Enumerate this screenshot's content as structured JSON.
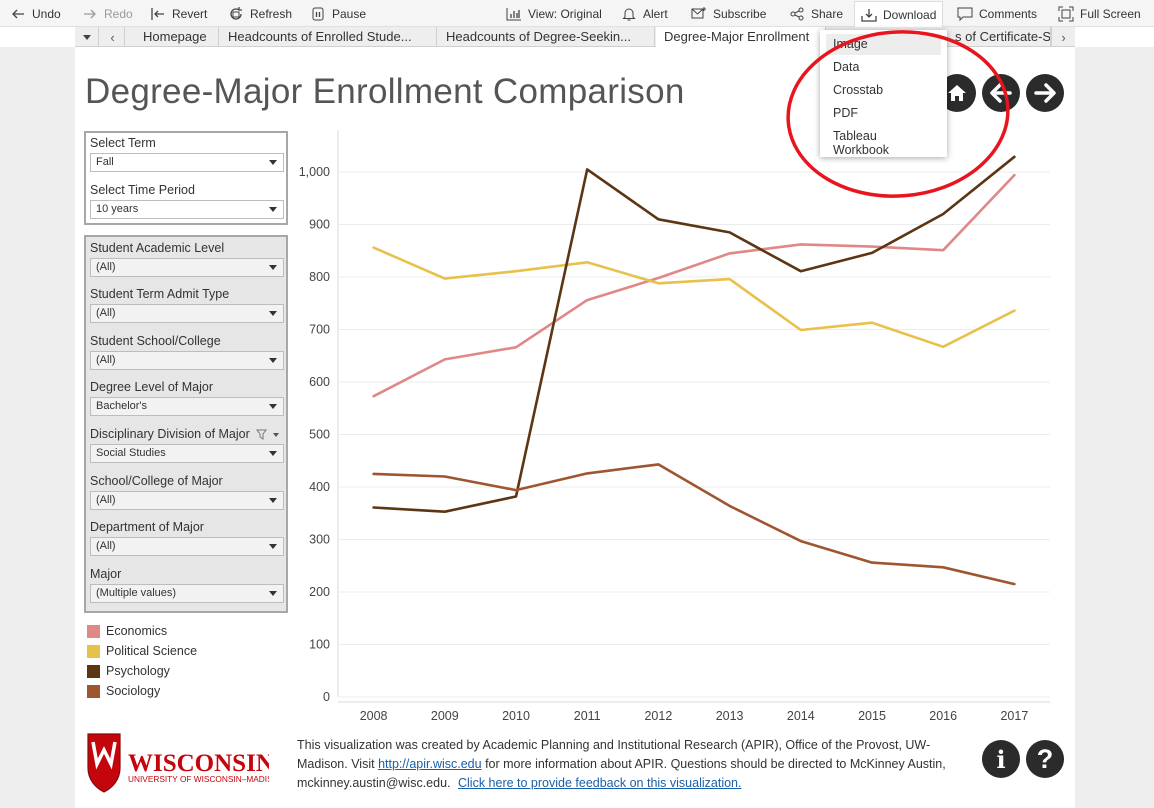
{
  "toolbar": {
    "undo": "Undo",
    "redo": "Redo",
    "revert": "Revert",
    "refresh": "Refresh",
    "pause": "Pause",
    "view": "View: Original",
    "alert": "Alert",
    "subscribe": "Subscribe",
    "share": "Share",
    "download": "Download",
    "comments": "Comments",
    "fullscreen": "Full Screen"
  },
  "tabs": [
    {
      "label": "Homepage"
    },
    {
      "label": "Headcounts of Enrolled Stude..."
    },
    {
      "label": "Headcounts of Degree-Seekin..."
    },
    {
      "label": "Degree-Major Enrollment"
    },
    {
      "label": "s of Certificate-S"
    }
  ],
  "download_menu": {
    "items": [
      "Image",
      "Data",
      "Crosstab",
      "PDF",
      "Tableau Workbook"
    ]
  },
  "page": {
    "title": "Degree-Major Enrollment Comparison"
  },
  "filters_top": [
    {
      "label": "Select Term",
      "value": "Fall"
    },
    {
      "label": "Select Time Period",
      "value": "10 years"
    }
  ],
  "filters": [
    {
      "label": "Student Academic Level",
      "value": "(All)"
    },
    {
      "label": "Student Term Admit Type",
      "value": "(All)"
    },
    {
      "label": "Student School/College",
      "value": "(All)"
    },
    {
      "label": "Degree Level of Major",
      "value": "Bachelor's"
    },
    {
      "label": "Disciplinary Division of Major",
      "value": "Social Studies"
    },
    {
      "label": "School/College of Major",
      "value": "(All)"
    },
    {
      "label": "Department of Major",
      "value": "(All)"
    },
    {
      "label": "Major",
      "value": "(Multiple values)"
    }
  ],
  "colors": {
    "economics": "#df8886",
    "political_science": "#e7c14a",
    "psychology": "#5c3512",
    "sociology": "#9e5530",
    "annotation": "#e8141e"
  },
  "chart_data": {
    "type": "line",
    "title": "Degree-Major Enrollment Comparison",
    "xlabel": "",
    "ylabel": "",
    "x": [
      "2008",
      "2009",
      "2010",
      "2011",
      "2012",
      "2013",
      "2014",
      "2015",
      "2016",
      "2017"
    ],
    "yticks": [
      "0",
      "100",
      "200",
      "300",
      "400",
      "500",
      "600",
      "700",
      "800",
      "900",
      "1,000"
    ],
    "ylim": [
      0,
      1080
    ],
    "legend_position": "left",
    "series": [
      {
        "name": "Economics",
        "color": "#df8886",
        "values": [
          573,
          643,
          666,
          756,
          798,
          845,
          862,
          858,
          851,
          994
        ]
      },
      {
        "name": "Political Science",
        "color": "#e7c14a",
        "values": [
          856,
          797,
          811,
          828,
          788,
          796,
          699,
          713,
          667,
          736
        ]
      },
      {
        "name": "Psychology",
        "color": "#5c3512",
        "values": [
          361,
          353,
          382,
          1005,
          910,
          885,
          811,
          846,
          920,
          1029
        ]
      },
      {
        "name": "Sociology",
        "color": "#9e5530",
        "values": [
          425,
          420,
          394,
          426,
          443,
          364,
          297,
          256,
          247,
          215
        ]
      }
    ]
  },
  "footer": {
    "text_before_link": "This visualization was created by Academic Planning and Institutional Research (APIR), Office of the Provost, UW-Madison. Visit ",
    "link": "http://apir.wisc.edu",
    "text_after_link": " for more information about APIR. Questions should be directed to McKinney Austin, mckinney.austin@wisc.edu.",
    "feedback_link": "Click here to provide feedback on this visualization.",
    "logo_name": "WISCONSIN",
    "logo_sub": "UNIVERSITY OF WISCONSIN–MADISON",
    "info_label": "i",
    "help_label": "?"
  }
}
